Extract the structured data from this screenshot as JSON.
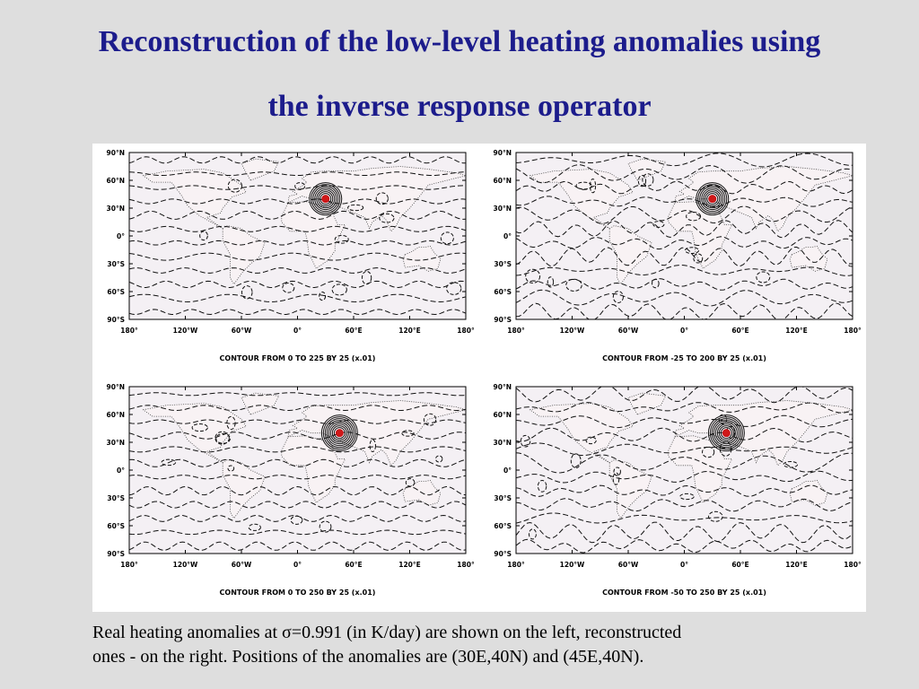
{
  "title": {
    "line1": "Reconstruction of the low-level heating anomalies using",
    "line2": "the inverse response operator"
  },
  "axis": {
    "lat_labels": [
      "90°N",
      "60°N",
      "30°N",
      "0°",
      "30°S",
      "60°S",
      "90°S"
    ],
    "lon_labels": [
      "180°",
      "120°W",
      "60°W",
      "0°",
      "60°E",
      "120°E",
      "180°"
    ]
  },
  "panels": [
    {
      "contour_text": "CONTOUR FROM 0 TO 225 BY 25 (x.01)",
      "anomaly_lon": 30,
      "anomaly_lat": 40
    },
    {
      "contour_text": "CONTOUR FROM -25 TO 200 BY 25 (x.01)",
      "anomaly_lon": 30,
      "anomaly_lat": 40
    },
    {
      "contour_text": "CONTOUR FROM 0 TO 250 BY 25 (x.01)",
      "anomaly_lon": 45,
      "anomaly_lat": 40
    },
    {
      "contour_text": "CONTOUR FROM -50 TO 250 BY 25 (x.01)",
      "anomaly_lon": 45,
      "anomaly_lat": 40
    }
  ],
  "caption": {
    "line1": "Real heating anomalies at σ=0.991 (in K/day) are shown on the left, reconstructed",
    "line2": "ones - on the right. Positions of the anomalies are (30E,40N) and (45E,40N)."
  }
}
